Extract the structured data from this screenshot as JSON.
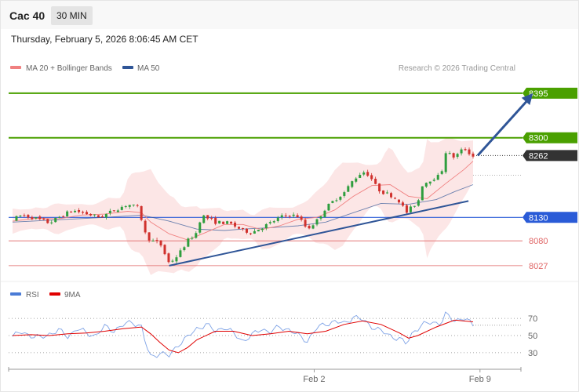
{
  "header": {
    "instrument": "Cac 40",
    "interval": "30 MIN"
  },
  "timestamp": "Thursday, February 5, 2026 8:06:45 AM CET",
  "legend_main": [
    {
      "label": "MA 20 + Bollinger Bands",
      "color": "#f08080"
    },
    {
      "label": "MA 50",
      "color": "#2f5597"
    }
  ],
  "copyright": "Research © 2026 Trading Central",
  "legend_rsi": [
    {
      "label": "RSI",
      "color": "#4a7bd6"
    },
    {
      "label": "9MA",
      "color": "#e00000"
    }
  ],
  "colors": {
    "up": "#2e9e3e",
    "down": "#d0312d",
    "resistance": "#4aa000",
    "support": "#2a5bd7",
    "minor_support": "#e06666",
    "last": "#333333",
    "trendline": "#2f5597"
  },
  "chart_data": [
    {
      "type": "candlestick",
      "y_range": [
        8010,
        8425
      ],
      "last_price": 8262,
      "levels": [
        {
          "value": 8395,
          "label": "8395",
          "kind": "resistance"
        },
        {
          "value": 8300,
          "label": "8300",
          "kind": "resistance"
        },
        {
          "value": 8262,
          "label": "8262",
          "kind": "last"
        },
        {
          "value": 8130,
          "label": "8130",
          "kind": "support"
        },
        {
          "value": 8080,
          "label": "8080",
          "kind": "minor_support"
        },
        {
          "value": 8027,
          "label": "8027",
          "kind": "minor_support"
        }
      ],
      "trendline": [
        [
          0.34,
          8027
        ],
        [
          0.99,
          8165
        ]
      ],
      "projection": [
        [
          1.01,
          8262
        ],
        [
          1.13,
          8395
        ]
      ],
      "x_labels": [
        {
          "pos": 0.655,
          "label": "Feb 2"
        },
        {
          "pos": 1.015,
          "label": "Feb 9"
        }
      ],
      "path": [
        [
          0.0,
          8125
        ],
        [
          0.02,
          8135
        ],
        [
          0.05,
          8128
        ],
        [
          0.08,
          8118
        ],
        [
          0.1,
          8130
        ],
        [
          0.13,
          8145
        ],
        [
          0.16,
          8138
        ],
        [
          0.19,
          8130
        ],
        [
          0.22,
          8145
        ],
        [
          0.25,
          8158
        ],
        [
          0.275,
          8150
        ],
        [
          0.285,
          8100
        ],
        [
          0.3,
          8080
        ],
        [
          0.32,
          8075
        ],
        [
          0.34,
          8032
        ],
        [
          0.36,
          8050
        ],
        [
          0.38,
          8080
        ],
        [
          0.4,
          8098
        ],
        [
          0.41,
          8135
        ],
        [
          0.44,
          8120
        ],
        [
          0.47,
          8118
        ],
        [
          0.5,
          8102
        ],
        [
          0.52,
          8098
        ],
        [
          0.54,
          8108
        ],
        [
          0.56,
          8118
        ],
        [
          0.58,
          8130
        ],
        [
          0.6,
          8136
        ],
        [
          0.62,
          8132
        ],
        [
          0.64,
          8105
        ],
        [
          0.66,
          8122
        ],
        [
          0.68,
          8150
        ],
        [
          0.7,
          8168
        ],
        [
          0.72,
          8183
        ],
        [
          0.74,
          8210
        ],
        [
          0.76,
          8228
        ],
        [
          0.775,
          8220
        ],
        [
          0.79,
          8195
        ],
        [
          0.8,
          8185
        ],
        [
          0.82,
          8178
        ],
        [
          0.84,
          8165
        ],
        [
          0.855,
          8140
        ],
        [
          0.87,
          8155
        ],
        [
          0.88,
          8162
        ],
        [
          0.89,
          8200
        ],
        [
          0.91,
          8212
        ],
        [
          0.93,
          8220
        ],
        [
          0.94,
          8270
        ],
        [
          0.96,
          8258
        ],
        [
          0.98,
          8278
        ],
        [
          1.0,
          8260
        ]
      ],
      "ma20": [
        [
          0.0,
          8122
        ],
        [
          0.05,
          8128
        ],
        [
          0.1,
          8127
        ],
        [
          0.15,
          8135
        ],
        [
          0.2,
          8137
        ],
        [
          0.25,
          8143
        ],
        [
          0.28,
          8140
        ],
        [
          0.3,
          8120
        ],
        [
          0.34,
          8095
        ],
        [
          0.38,
          8082
        ],
        [
          0.42,
          8098
        ],
        [
          0.46,
          8115
        ],
        [
          0.5,
          8115
        ],
        [
          0.54,
          8104
        ],
        [
          0.58,
          8112
        ],
        [
          0.62,
          8126
        ],
        [
          0.66,
          8130
        ],
        [
          0.7,
          8146
        ],
        [
          0.74,
          8175
        ],
        [
          0.78,
          8198
        ],
        [
          0.82,
          8200
        ],
        [
          0.86,
          8175
        ],
        [
          0.9,
          8170
        ],
        [
          0.94,
          8202
        ],
        [
          0.98,
          8232
        ],
        [
          1.0,
          8250
        ]
      ],
      "ma50": [
        [
          0.0,
          8120
        ],
        [
          0.1,
          8125
        ],
        [
          0.2,
          8130
        ],
        [
          0.28,
          8135
        ],
        [
          0.34,
          8122
        ],
        [
          0.4,
          8105
        ],
        [
          0.46,
          8102
        ],
        [
          0.5,
          8105
        ],
        [
          0.56,
          8108
        ],
        [
          0.62,
          8112
        ],
        [
          0.68,
          8120
        ],
        [
          0.74,
          8140
        ],
        [
          0.8,
          8160
        ],
        [
          0.86,
          8158
        ],
        [
          0.92,
          8168
        ],
        [
          0.96,
          8185
        ],
        [
          1.0,
          8200
        ]
      ]
    },
    {
      "type": "line",
      "title": "RSI",
      "y_range": [
        18,
        82
      ],
      "y_ticks": [
        30,
        50,
        70
      ],
      "grid": true,
      "rsi": [
        [
          0.0,
          49
        ],
        [
          0.02,
          54
        ],
        [
          0.04,
          50
        ],
        [
          0.06,
          47
        ],
        [
          0.08,
          52
        ],
        [
          0.1,
          56
        ],
        [
          0.12,
          49
        ],
        [
          0.14,
          58
        ],
        [
          0.16,
          53
        ],
        [
          0.18,
          50
        ],
        [
          0.2,
          60
        ],
        [
          0.22,
          56
        ],
        [
          0.24,
          62
        ],
        [
          0.26,
          66
        ],
        [
          0.28,
          60
        ],
        [
          0.29,
          38
        ],
        [
          0.3,
          25
        ],
        [
          0.32,
          30
        ],
        [
          0.34,
          26
        ],
        [
          0.36,
          40
        ],
        [
          0.38,
          48
        ],
        [
          0.4,
          58
        ],
        [
          0.42,
          63
        ],
        [
          0.44,
          55
        ],
        [
          0.46,
          60
        ],
        [
          0.48,
          52
        ],
        [
          0.5,
          44
        ],
        [
          0.52,
          50
        ],
        [
          0.54,
          58
        ],
        [
          0.56,
          54
        ],
        [
          0.58,
          60
        ],
        [
          0.6,
          57
        ],
        [
          0.62,
          50
        ],
        [
          0.64,
          44
        ],
        [
          0.66,
          58
        ],
        [
          0.68,
          64
        ],
        [
          0.7,
          66
        ],
        [
          0.72,
          64
        ],
        [
          0.74,
          72
        ],
        [
          0.76,
          68
        ],
        [
          0.78,
          61
        ],
        [
          0.8,
          55
        ],
        [
          0.82,
          50
        ],
        [
          0.84,
          46
        ],
        [
          0.855,
          40
        ],
        [
          0.87,
          55
        ],
        [
          0.89,
          62
        ],
        [
          0.91,
          66
        ],
        [
          0.93,
          64
        ],
        [
          0.94,
          74
        ],
        [
          0.96,
          68
        ],
        [
          0.98,
          70
        ],
        [
          1.0,
          62
        ]
      ],
      "ma9": [
        [
          0.0,
          50
        ],
        [
          0.04,
          51
        ],
        [
          0.08,
          50
        ],
        [
          0.12,
          52
        ],
        [
          0.16,
          53
        ],
        [
          0.2,
          55
        ],
        [
          0.24,
          58
        ],
        [
          0.28,
          60
        ],
        [
          0.3,
          52
        ],
        [
          0.32,
          42
        ],
        [
          0.34,
          33
        ],
        [
          0.36,
          30
        ],
        [
          0.38,
          36
        ],
        [
          0.4,
          45
        ],
        [
          0.44,
          55
        ],
        [
          0.48,
          55
        ],
        [
          0.52,
          50
        ],
        [
          0.56,
          52
        ],
        [
          0.6,
          55
        ],
        [
          0.64,
          52
        ],
        [
          0.68,
          55
        ],
        [
          0.72,
          63
        ],
        [
          0.76,
          67
        ],
        [
          0.8,
          63
        ],
        [
          0.84,
          53
        ],
        [
          0.86,
          47
        ],
        [
          0.88,
          50
        ],
        [
          0.92,
          60
        ],
        [
          0.96,
          68
        ],
        [
          1.0,
          66
        ]
      ]
    }
  ]
}
